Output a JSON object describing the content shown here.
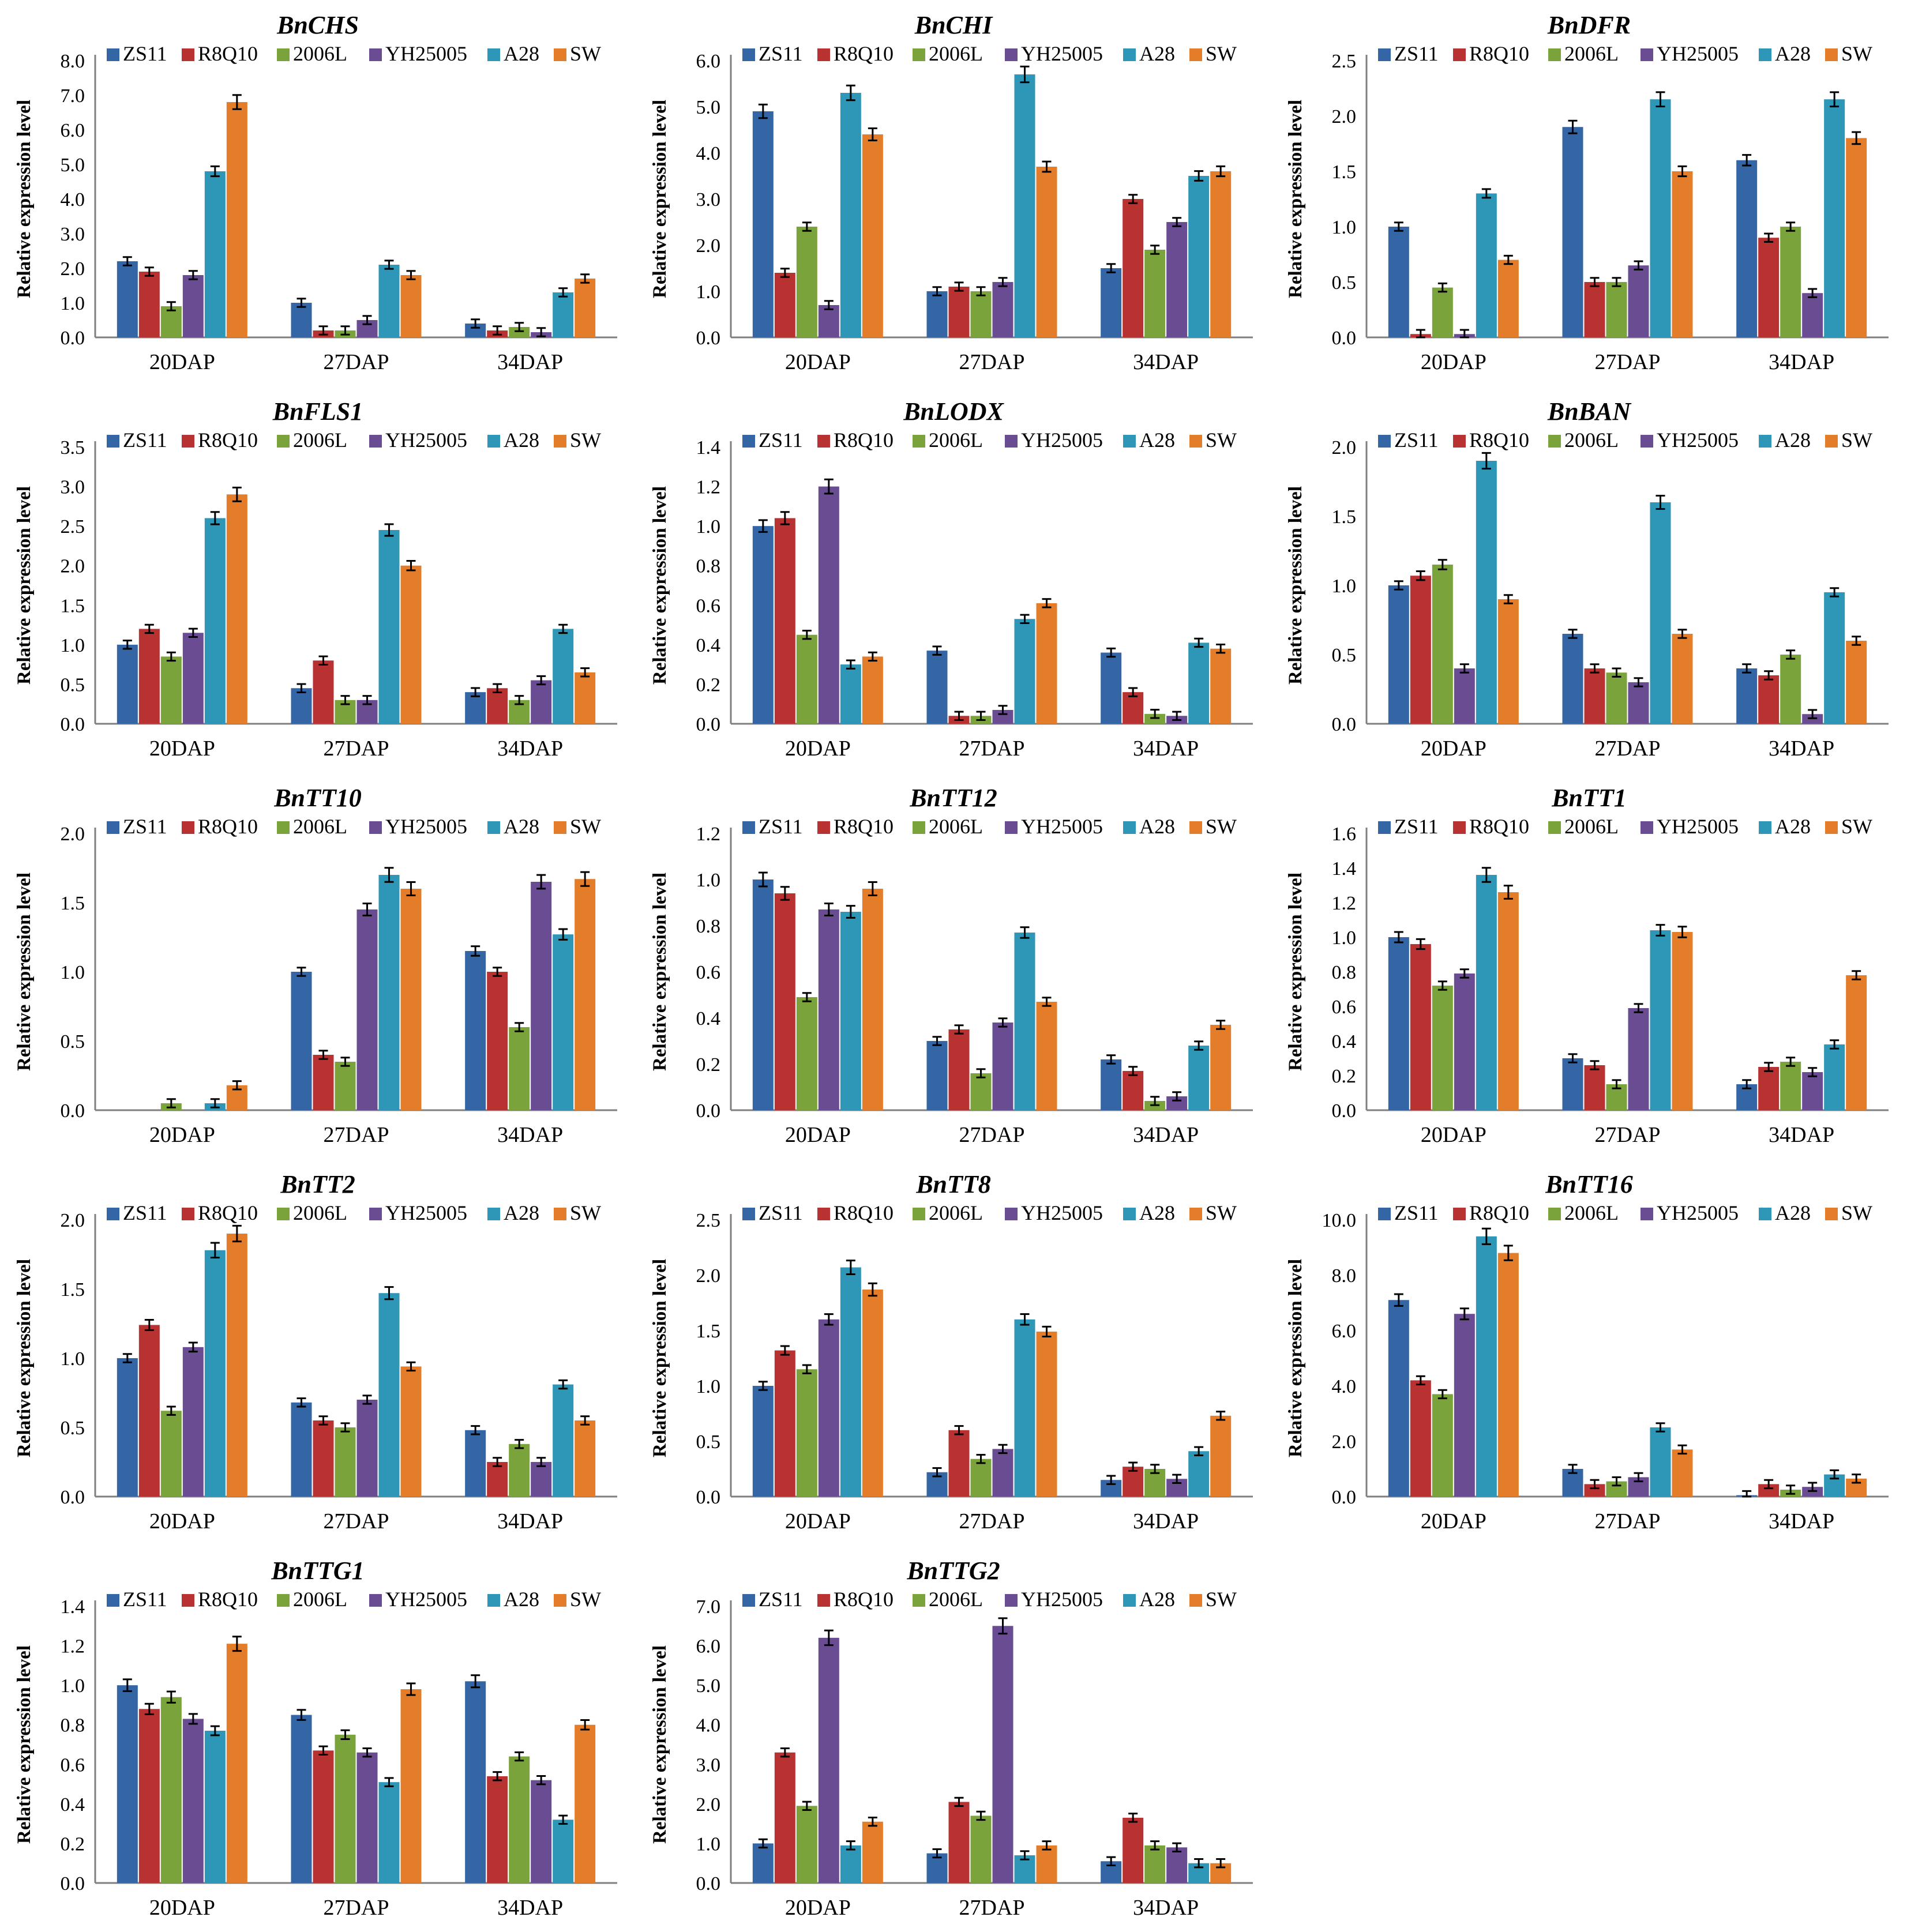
{
  "colors": {
    "ZS11": "#3465a4",
    "R8Q10": "#b83232",
    "2006L": "#7aa33b",
    "YH25005": "#6a4c93",
    "A28": "#2e96b7",
    "SW": "#e47d2a"
  },
  "chart_data": [
    {
      "type": "bar",
      "title": "BnCHS",
      "ylabel": "Relative expression level",
      "ylim": [
        0,
        8
      ],
      "yticks": [
        "0.0",
        "1.0",
        "2.0",
        "3.0",
        "4.0",
        "5.0",
        "6.0",
        "7.0",
        "8.0"
      ],
      "categories": [
        "20DAP",
        "27DAP",
        "34DAP"
      ],
      "series": [
        {
          "name": "ZS11",
          "values": [
            2.2,
            1.0,
            0.4
          ]
        },
        {
          "name": "R8Q10",
          "values": [
            1.9,
            0.2,
            0.2
          ]
        },
        {
          "name": "2006L",
          "values": [
            0.9,
            0.2,
            0.3
          ]
        },
        {
          "name": "YH25005",
          "values": [
            1.8,
            0.5,
            0.15
          ]
        },
        {
          "name": "A28",
          "values": [
            4.8,
            2.1,
            1.3
          ]
        },
        {
          "name": "SW",
          "values": [
            6.8,
            1.8,
            1.7
          ]
        }
      ]
    },
    {
      "type": "bar",
      "title": "BnCHI",
      "ylabel": "Relative expression level",
      "ylim": [
        0,
        6
      ],
      "yticks": [
        "0.0",
        "1.0",
        "2.0",
        "3.0",
        "4.0",
        "5.0",
        "6.0"
      ],
      "categories": [
        "20DAP",
        "27DAP",
        "34DAP"
      ],
      "series": [
        {
          "name": "ZS11",
          "values": [
            4.9,
            1.0,
            1.5
          ]
        },
        {
          "name": "R8Q10",
          "values": [
            1.4,
            1.1,
            3.0
          ]
        },
        {
          "name": "2006L",
          "values": [
            2.4,
            1.0,
            1.9
          ]
        },
        {
          "name": "YH25005",
          "values": [
            0.7,
            1.2,
            2.5
          ]
        },
        {
          "name": "A28",
          "values": [
            5.3,
            5.7,
            3.5
          ]
        },
        {
          "name": "SW",
          "values": [
            4.4,
            3.7,
            3.6
          ]
        }
      ]
    },
    {
      "type": "bar",
      "title": "BnDFR",
      "ylabel": "Relative expression level",
      "ylim": [
        0,
        2.5
      ],
      "yticks": [
        "0.0",
        "0.5",
        "1.0",
        "1.5",
        "2.0",
        "2.5"
      ],
      "categories": [
        "20DAP",
        "27DAP",
        "34DAP"
      ],
      "series": [
        {
          "name": "ZS11",
          "values": [
            1.0,
            1.9,
            1.6
          ]
        },
        {
          "name": "R8Q10",
          "values": [
            0.03,
            0.5,
            0.9
          ]
        },
        {
          "name": "2006L",
          "values": [
            0.45,
            0.5,
            1.0
          ]
        },
        {
          "name": "YH25005",
          "values": [
            0.03,
            0.65,
            0.4
          ]
        },
        {
          "name": "A28",
          "values": [
            1.3,
            2.15,
            2.15
          ]
        },
        {
          "name": "SW",
          "values": [
            0.7,
            1.5,
            1.8
          ]
        }
      ]
    },
    {
      "type": "bar",
      "title": "BnFLS1",
      "ylabel": "Relative expression level",
      "ylim": [
        0,
        3.5
      ],
      "yticks": [
        "0.0",
        "0.5",
        "1.0",
        "1.5",
        "2.0",
        "2.5",
        "3.0",
        "3.5"
      ],
      "categories": [
        "20DAP",
        "27DAP",
        "34DAP"
      ],
      "series": [
        {
          "name": "ZS11",
          "values": [
            1.0,
            0.45,
            0.4
          ]
        },
        {
          "name": "R8Q10",
          "values": [
            1.2,
            0.8,
            0.45
          ]
        },
        {
          "name": "2006L",
          "values": [
            0.85,
            0.3,
            0.3
          ]
        },
        {
          "name": "YH25005",
          "values": [
            1.15,
            0.3,
            0.55
          ]
        },
        {
          "name": "A28",
          "values": [
            2.6,
            2.45,
            1.2
          ]
        },
        {
          "name": "SW",
          "values": [
            2.9,
            2.0,
            0.65
          ]
        }
      ]
    },
    {
      "type": "bar",
      "title": "BnLODX",
      "ylabel": "Relative expression level",
      "ylim": [
        0,
        1.4
      ],
      "yticks": [
        "0.0",
        "0.2",
        "0.4",
        "0.6",
        "0.8",
        "1.0",
        "1.2",
        "1.4"
      ],
      "categories": [
        "20DAP",
        "27DAP",
        "34DAP"
      ],
      "series": [
        {
          "name": "ZS11",
          "values": [
            1.0,
            0.37,
            0.36
          ]
        },
        {
          "name": "R8Q10",
          "values": [
            1.04,
            0.04,
            0.16
          ]
        },
        {
          "name": "2006L",
          "values": [
            0.45,
            0.04,
            0.05
          ]
        },
        {
          "name": "YH25005",
          "values": [
            1.2,
            0.07,
            0.04
          ]
        },
        {
          "name": "A28",
          "values": [
            0.3,
            0.53,
            0.41
          ]
        },
        {
          "name": "SW",
          "values": [
            0.34,
            0.61,
            0.38
          ]
        }
      ]
    },
    {
      "type": "bar",
      "title": "BnBAN",
      "ylabel": "Relative expression level",
      "ylim": [
        0,
        2.0
      ],
      "yticks": [
        "0.0",
        "0.5",
        "1.0",
        "1.5",
        "2.0"
      ],
      "categories": [
        "20DAP",
        "27DAP",
        "34DAP"
      ],
      "series": [
        {
          "name": "ZS11",
          "values": [
            1.0,
            0.65,
            0.4
          ]
        },
        {
          "name": "R8Q10",
          "values": [
            1.07,
            0.4,
            0.35
          ]
        },
        {
          "name": "2006L",
          "values": [
            1.15,
            0.37,
            0.5
          ]
        },
        {
          "name": "YH25005",
          "values": [
            0.4,
            0.3,
            0.07
          ]
        },
        {
          "name": "A28",
          "values": [
            1.9,
            1.6,
            0.95
          ]
        },
        {
          "name": "SW",
          "values": [
            0.9,
            0.65,
            0.6
          ]
        }
      ]
    },
    {
      "type": "bar",
      "title": "BnTT10",
      "ylabel": "Relative expression level",
      "ylim": [
        0,
        2.0
      ],
      "yticks": [
        "0.0",
        "0.5",
        "1.0",
        "1.5",
        "2.0"
      ],
      "categories": [
        "20DAP",
        "27DAP",
        "34DAP"
      ],
      "series": [
        {
          "name": "ZS11",
          "values": [
            0,
            1.0,
            1.15
          ]
        },
        {
          "name": "R8Q10",
          "values": [
            0,
            0.4,
            1.0
          ]
        },
        {
          "name": "2006L",
          "values": [
            0.05,
            0.35,
            0.6
          ]
        },
        {
          "name": "YH25005",
          "values": [
            0,
            1.45,
            1.65
          ]
        },
        {
          "name": "A28",
          "values": [
            0.05,
            1.7,
            1.27
          ]
        },
        {
          "name": "SW",
          "values": [
            0.18,
            1.6,
            1.67
          ]
        }
      ]
    },
    {
      "type": "bar",
      "title": "BnTT12",
      "ylabel": "Relative expression level",
      "ylim": [
        0,
        1.2
      ],
      "yticks": [
        "0.0",
        "0.2",
        "0.4",
        "0.6",
        "0.8",
        "1.0",
        "1.2"
      ],
      "categories": [
        "20DAP",
        "27DAP",
        "34DAP"
      ],
      "series": [
        {
          "name": "ZS11",
          "values": [
            1.0,
            0.3,
            0.22
          ]
        },
        {
          "name": "R8Q10",
          "values": [
            0.94,
            0.35,
            0.17
          ]
        },
        {
          "name": "2006L",
          "values": [
            0.49,
            0.16,
            0.04
          ]
        },
        {
          "name": "YH25005",
          "values": [
            0.87,
            0.38,
            0.06
          ]
        },
        {
          "name": "A28",
          "values": [
            0.86,
            0.77,
            0.28
          ]
        },
        {
          "name": "SW",
          "values": [
            0.96,
            0.47,
            0.37
          ]
        }
      ]
    },
    {
      "type": "bar",
      "title": "BnTT1",
      "ylabel": "Relative expression level",
      "ylim": [
        0,
        1.6
      ],
      "yticks": [
        "0.0",
        "0.2",
        "0.4",
        "0.6",
        "0.8",
        "1.0",
        "1.2",
        "1.4",
        "1.6"
      ],
      "categories": [
        "20DAP",
        "27DAP",
        "34DAP"
      ],
      "series": [
        {
          "name": "ZS11",
          "values": [
            1.0,
            0.3,
            0.15
          ]
        },
        {
          "name": "R8Q10",
          "values": [
            0.96,
            0.26,
            0.25
          ]
        },
        {
          "name": "2006L",
          "values": [
            0.72,
            0.15,
            0.28
          ]
        },
        {
          "name": "YH25005",
          "values": [
            0.79,
            0.59,
            0.22
          ]
        },
        {
          "name": "A28",
          "values": [
            1.36,
            1.04,
            0.38
          ]
        },
        {
          "name": "SW",
          "values": [
            1.26,
            1.03,
            0.78
          ]
        }
      ]
    },
    {
      "type": "bar",
      "title": "BnTT2",
      "ylabel": "Relative expression level",
      "ylim": [
        0,
        2.0
      ],
      "yticks": [
        "0.0",
        "0.5",
        "1.0",
        "1.5",
        "2.0"
      ],
      "categories": [
        "20DAP",
        "27DAP",
        "34DAP"
      ],
      "series": [
        {
          "name": "ZS11",
          "values": [
            1.0,
            0.68,
            0.48
          ]
        },
        {
          "name": "R8Q10",
          "values": [
            1.24,
            0.55,
            0.25
          ]
        },
        {
          "name": "2006L",
          "values": [
            0.62,
            0.5,
            0.38
          ]
        },
        {
          "name": "YH25005",
          "values": [
            1.08,
            0.7,
            0.25
          ]
        },
        {
          "name": "A28",
          "values": [
            1.78,
            1.47,
            0.81
          ]
        },
        {
          "name": "SW",
          "values": [
            1.9,
            0.94,
            0.55
          ]
        }
      ]
    },
    {
      "type": "bar",
      "title": "BnTT8",
      "ylabel": "Relative expression level",
      "ylim": [
        0,
        2.5
      ],
      "yticks": [
        "0.0",
        "0.5",
        "1.0",
        "1.5",
        "2.0",
        "2.5"
      ],
      "categories": [
        "20DAP",
        "27DAP",
        "34DAP"
      ],
      "series": [
        {
          "name": "ZS11",
          "values": [
            1.0,
            0.22,
            0.15
          ]
        },
        {
          "name": "R8Q10",
          "values": [
            1.32,
            0.6,
            0.27
          ]
        },
        {
          "name": "2006L",
          "values": [
            1.15,
            0.34,
            0.25
          ]
        },
        {
          "name": "YH25005",
          "values": [
            1.6,
            0.43,
            0.16
          ]
        },
        {
          "name": "A28",
          "values": [
            2.07,
            1.6,
            0.41
          ]
        },
        {
          "name": "SW",
          "values": [
            1.87,
            1.49,
            0.73
          ]
        }
      ]
    },
    {
      "type": "bar",
      "title": "BnTT16",
      "ylabel": "Relative expression level",
      "ylim": [
        0,
        10
      ],
      "yticks": [
        "0.0",
        "2.0",
        "4.0",
        "6.0",
        "8.0",
        "10.0"
      ],
      "categories": [
        "20DAP",
        "27DAP",
        "34DAP"
      ],
      "series": [
        {
          "name": "ZS11",
          "values": [
            7.1,
            1.0,
            0.05
          ]
        },
        {
          "name": "R8Q10",
          "values": [
            4.2,
            0.45,
            0.45
          ]
        },
        {
          "name": "2006L",
          "values": [
            3.7,
            0.55,
            0.25
          ]
        },
        {
          "name": "YH25005",
          "values": [
            6.6,
            0.7,
            0.35
          ]
        },
        {
          "name": "A28",
          "values": [
            9.4,
            2.5,
            0.8
          ]
        },
        {
          "name": "SW",
          "values": [
            8.8,
            1.7,
            0.65
          ]
        }
      ]
    },
    {
      "type": "bar",
      "title": "BnTTG1",
      "ylabel": "Relative expression level",
      "ylim": [
        0,
        1.4
      ],
      "yticks": [
        "0.0",
        "0.2",
        "0.4",
        "0.6",
        "0.8",
        "1.0",
        "1.2",
        "1.4"
      ],
      "categories": [
        "20DAP",
        "27DAP",
        "34DAP"
      ],
      "series": [
        {
          "name": "ZS11",
          "values": [
            1.0,
            0.85,
            1.02
          ]
        },
        {
          "name": "R8Q10",
          "values": [
            0.88,
            0.67,
            0.54
          ]
        },
        {
          "name": "2006L",
          "values": [
            0.94,
            0.75,
            0.64
          ]
        },
        {
          "name": "YH25005",
          "values": [
            0.83,
            0.66,
            0.52
          ]
        },
        {
          "name": "A28",
          "values": [
            0.77,
            0.51,
            0.32
          ]
        },
        {
          "name": "SW",
          "values": [
            1.21,
            0.98,
            0.8
          ]
        }
      ]
    },
    {
      "type": "bar",
      "title": "BnTTG2",
      "ylabel": "Relative expression level",
      "ylim": [
        0,
        7
      ],
      "yticks": [
        "0.0",
        "1.0",
        "2.0",
        "3.0",
        "4.0",
        "5.0",
        "6.0",
        "7.0"
      ],
      "categories": [
        "20DAP",
        "27DAP",
        "34DAP"
      ],
      "series": [
        {
          "name": "ZS11",
          "values": [
            1.0,
            0.75,
            0.55
          ]
        },
        {
          "name": "R8Q10",
          "values": [
            3.3,
            2.05,
            1.65
          ]
        },
        {
          "name": "2006L",
          "values": [
            1.95,
            1.7,
            0.95
          ]
        },
        {
          "name": "YH25005",
          "values": [
            6.2,
            6.5,
            0.9
          ]
        },
        {
          "name": "A28",
          "values": [
            0.95,
            0.7,
            0.5
          ]
        },
        {
          "name": "SW",
          "values": [
            1.55,
            0.95,
            0.5
          ]
        }
      ]
    }
  ]
}
